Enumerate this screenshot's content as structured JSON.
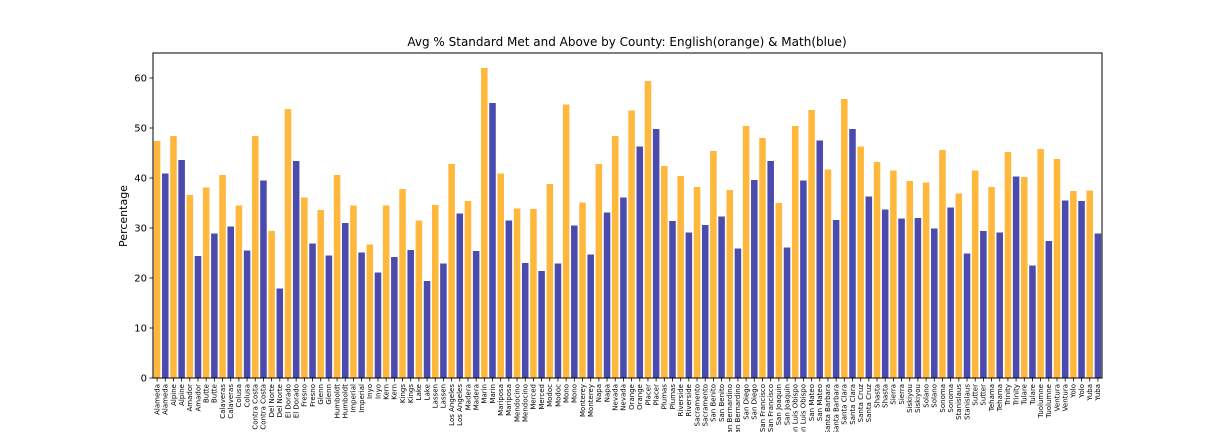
{
  "chart_data": {
    "type": "bar",
    "title": "Avg % Standard Met and Above by County: English(orange) & Math(blue)",
    "xlabel": "",
    "ylabel": "Percentage",
    "ylim": [
      0,
      65
    ],
    "yticks": [
      0,
      10,
      20,
      30,
      40,
      50,
      60
    ],
    "grid": false,
    "legend": "none",
    "colors": {
      "english": "#FFAA1A",
      "math": "#2B2B9F"
    },
    "categories": [
      "Alameda",
      "Alpine",
      "Amador",
      "Butte",
      "Calaveras",
      "Colusa",
      "Contra Costa",
      "Del Norte",
      "El Dorado",
      "Fresno",
      "Glenn",
      "Humboldt",
      "Imperial",
      "Inyo",
      "Kern",
      "Kings",
      "Lake",
      "Lassen",
      "Los Angeles",
      "Madera",
      "Marin",
      "Mariposa",
      "Mendocino",
      "Merced",
      "Modoc",
      "Mono",
      "Monterey",
      "Napa",
      "Nevada",
      "Orange",
      "Placer",
      "Plumas",
      "Riverside",
      "Sacramento",
      "San Benito",
      "San Bernardino",
      "San Diego",
      "San Francisco",
      "San Joaquin",
      "San Luis Obispo",
      "San Mateo",
      "Santa Barbara",
      "Santa Clara",
      "Santa Cruz",
      "Shasta",
      "Sierra",
      "Siskiyou",
      "Solano",
      "Sonoma",
      "Stanislaus",
      "Sutter",
      "Tehama",
      "Trinity",
      "Tulare",
      "Tuolumne",
      "Ventura",
      "Yolo",
      "Yuba"
    ],
    "series": [
      {
        "name": "English",
        "values": [
          47.4,
          48.4,
          36.6,
          38.1,
          40.6,
          34.5,
          48.4,
          29.4,
          53.8,
          36.1,
          33.6,
          40.6,
          34.5,
          26.7,
          34.5,
          37.8,
          31.5,
          34.6,
          42.8,
          35.4,
          62.0,
          40.9,
          33.9,
          33.8,
          38.8,
          54.7,
          35.1,
          42.8,
          48.4,
          53.5,
          59.4,
          42.4,
          40.4,
          38.2,
          45.4,
          37.6,
          50.4,
          48.0,
          35.0,
          50.4,
          53.6,
          41.7,
          55.8,
          46.3,
          43.2,
          41.5,
          39.4,
          39.1,
          45.6,
          36.9,
          41.5,
          38.2,
          45.2,
          40.2,
          45.8,
          43.8,
          37.4,
          37.5
        ]
      },
      {
        "name": "Math",
        "values": [
          40.9,
          43.6,
          24.4,
          28.9,
          30.3,
          25.5,
          39.5,
          17.9,
          43.4,
          26.9,
          24.5,
          31.0,
          25.1,
          21.1,
          24.2,
          25.6,
          19.4,
          22.9,
          32.9,
          25.4,
          55.0,
          31.5,
          23.0,
          21.4,
          22.9,
          30.5,
          24.7,
          33.1,
          36.1,
          46.3,
          49.8,
          31.4,
          29.1,
          30.6,
          32.3,
          25.9,
          39.6,
          43.4,
          26.1,
          39.5,
          47.5,
          31.6,
          49.8,
          36.3,
          33.7,
          31.9,
          32.0,
          29.9,
          34.1,
          24.9,
          29.4,
          29.1,
          40.3,
          22.5,
          27.4,
          35.5,
          35.4,
          28.9
        ]
      }
    ]
  }
}
